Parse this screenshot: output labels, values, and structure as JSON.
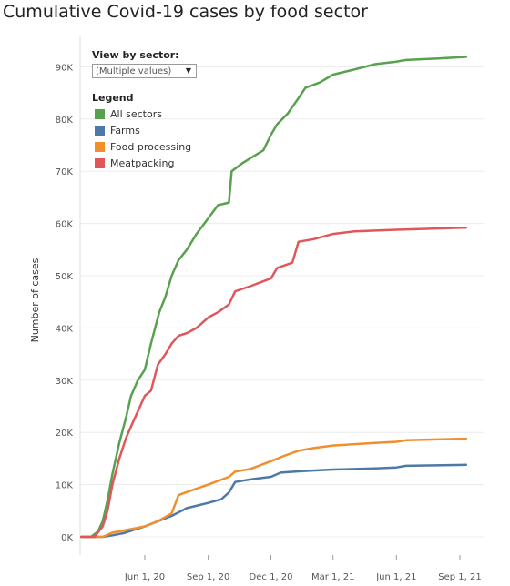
{
  "title": "Cumulative Covid-19 cases by food sector",
  "filter": {
    "label": "View by sector:",
    "value": "(Multiple values)"
  },
  "legend": {
    "title": "Legend",
    "items": [
      {
        "label": "All sectors",
        "color": "#59a14f"
      },
      {
        "label": "Farms",
        "color": "#4e79a7"
      },
      {
        "label": "Food processing",
        "color": "#f28e2b"
      },
      {
        "label": "Meatpacking",
        "color": "#e15759"
      }
    ]
  },
  "chart_data": {
    "type": "line",
    "ylabel": "Number of cases",
    "ylim": [
      0,
      95000
    ],
    "y_ticks": [
      0,
      10000,
      20000,
      30000,
      40000,
      50000,
      60000,
      70000,
      80000,
      90000
    ],
    "y_tick_labels": [
      "0K",
      "10K",
      "20K",
      "30K",
      "40K",
      "50K",
      "60K",
      "70K",
      "80K",
      "90K"
    ],
    "x_ticks": [
      "2020-06-01",
      "2020-09-01",
      "2020-12-01",
      "2021-03-01",
      "2021-06-01",
      "2021-09-01"
    ],
    "x_tick_labels": [
      "Jun 1, 20",
      "Sep 1, 20",
      "Dec 1, 20",
      "Mar 1, 21",
      "Jun 1, 21",
      "Sep 1, 21"
    ],
    "grid": true,
    "legend_position": "top-left",
    "series": [
      {
        "name": "All sectors",
        "color": "#59a14f",
        "points": [
          [
            "2020-03-01",
            0
          ],
          [
            "2020-03-15",
            0
          ],
          [
            "2020-03-25",
            1000
          ],
          [
            "2020-04-01",
            3000
          ],
          [
            "2020-04-08",
            7000
          ],
          [
            "2020-04-15",
            12000
          ],
          [
            "2020-04-25",
            18000
          ],
          [
            "2020-05-05",
            23000
          ],
          [
            "2020-05-12",
            27000
          ],
          [
            "2020-05-22",
            30000
          ],
          [
            "2020-06-01",
            32000
          ],
          [
            "2020-06-10",
            37000
          ],
          [
            "2020-06-22",
            43000
          ],
          [
            "2020-07-01",
            46000
          ],
          [
            "2020-07-10",
            50000
          ],
          [
            "2020-07-20",
            53000
          ],
          [
            "2020-08-01",
            55000
          ],
          [
            "2020-08-15",
            58000
          ],
          [
            "2020-09-01",
            61000
          ],
          [
            "2020-09-15",
            63500
          ],
          [
            "2020-10-01",
            64000
          ],
          [
            "2020-10-05",
            70000
          ],
          [
            "2020-10-20",
            71500
          ],
          [
            "2020-11-01",
            72500
          ],
          [
            "2020-11-20",
            74000
          ],
          [
            "2020-12-01",
            77000
          ],
          [
            "2020-12-10",
            79000
          ],
          [
            "2020-12-25",
            81000
          ],
          [
            "2021-01-10",
            84000
          ],
          [
            "2021-01-20",
            86000
          ],
          [
            "2021-02-10",
            87000
          ],
          [
            "2021-03-01",
            88500
          ],
          [
            "2021-04-01",
            89500
          ],
          [
            "2021-05-01",
            90500
          ],
          [
            "2021-06-01",
            91000
          ],
          [
            "2021-06-15",
            91300
          ],
          [
            "2021-08-01",
            91600
          ],
          [
            "2021-09-10",
            91900
          ]
        ]
      },
      {
        "name": "Farms",
        "color": "#4e79a7",
        "points": [
          [
            "2020-03-01",
            0
          ],
          [
            "2020-04-01",
            0
          ],
          [
            "2020-04-15",
            300
          ],
          [
            "2020-05-01",
            700
          ],
          [
            "2020-05-20",
            1500
          ],
          [
            "2020-06-01",
            2000
          ],
          [
            "2020-06-20",
            3000
          ],
          [
            "2020-07-10",
            4000
          ],
          [
            "2020-08-01",
            5500
          ],
          [
            "2020-09-01",
            6500
          ],
          [
            "2020-09-20",
            7200
          ],
          [
            "2020-10-01",
            8500
          ],
          [
            "2020-10-10",
            10500
          ],
          [
            "2020-11-01",
            11000
          ],
          [
            "2020-12-01",
            11500
          ],
          [
            "2020-12-15",
            12300
          ],
          [
            "2021-01-15",
            12600
          ],
          [
            "2021-03-01",
            12900
          ],
          [
            "2021-05-01",
            13100
          ],
          [
            "2021-06-01",
            13300
          ],
          [
            "2021-06-15",
            13600
          ],
          [
            "2021-09-10",
            13800
          ]
        ]
      },
      {
        "name": "Food processing",
        "color": "#f28e2b",
        "points": [
          [
            "2020-03-01",
            0
          ],
          [
            "2020-04-01",
            0
          ],
          [
            "2020-04-15",
            800
          ],
          [
            "2020-05-01",
            1200
          ],
          [
            "2020-06-01",
            2000
          ],
          [
            "2020-06-20",
            3000
          ],
          [
            "2020-07-10",
            4500
          ],
          [
            "2020-07-20",
            8000
          ],
          [
            "2020-08-10",
            9000
          ],
          [
            "2020-09-01",
            10000
          ],
          [
            "2020-10-01",
            11500
          ],
          [
            "2020-10-10",
            12500
          ],
          [
            "2020-11-01",
            13000
          ],
          [
            "2020-12-01",
            14500
          ],
          [
            "2020-12-20",
            15500
          ],
          [
            "2021-01-10",
            16500
          ],
          [
            "2021-02-01",
            17000
          ],
          [
            "2021-03-01",
            17500
          ],
          [
            "2021-05-01",
            18000
          ],
          [
            "2021-06-01",
            18200
          ],
          [
            "2021-06-15",
            18500
          ],
          [
            "2021-09-10",
            18800
          ]
        ]
      },
      {
        "name": "Meatpacking",
        "color": "#e15759",
        "points": [
          [
            "2020-03-01",
            0
          ],
          [
            "2020-03-20",
            0
          ],
          [
            "2020-04-01",
            2000
          ],
          [
            "2020-04-08",
            5000
          ],
          [
            "2020-04-15",
            10000
          ],
          [
            "2020-04-25",
            15000
          ],
          [
            "2020-05-05",
            19000
          ],
          [
            "2020-05-15",
            22000
          ],
          [
            "2020-06-01",
            27000
          ],
          [
            "2020-06-10",
            28000
          ],
          [
            "2020-06-20",
            33000
          ],
          [
            "2020-07-01",
            35000
          ],
          [
            "2020-07-10",
            37000
          ],
          [
            "2020-07-20",
            38500
          ],
          [
            "2020-08-01",
            39000
          ],
          [
            "2020-08-15",
            40000
          ],
          [
            "2020-09-01",
            42000
          ],
          [
            "2020-09-15",
            43000
          ],
          [
            "2020-10-01",
            44500
          ],
          [
            "2020-10-10",
            47000
          ],
          [
            "2020-11-01",
            48000
          ],
          [
            "2020-12-01",
            49500
          ],
          [
            "2020-12-10",
            51500
          ],
          [
            "2021-01-01",
            52500
          ],
          [
            "2021-01-10",
            56500
          ],
          [
            "2021-02-01",
            57000
          ],
          [
            "2021-03-01",
            58000
          ],
          [
            "2021-04-01",
            58500
          ],
          [
            "2021-06-01",
            58800
          ],
          [
            "2021-09-10",
            59200
          ]
        ]
      }
    ]
  }
}
